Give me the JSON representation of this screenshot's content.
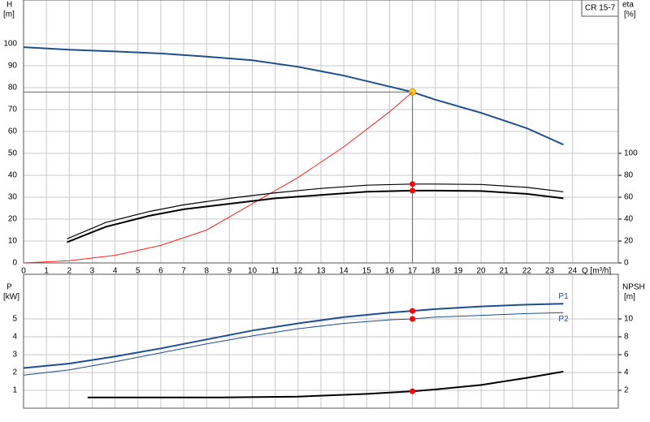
{
  "chart_data": [
    {
      "type": "line",
      "duty_x": 17,
      "legend": "CR 15-7",
      "y_label": "H",
      "y_unit": "[m]",
      "y2_label": "eta",
      "y2_unit": "[%]",
      "x_label": "Q [m³/h]",
      "xlim": [
        0,
        26
      ],
      "xticks": [
        0,
        1,
        2,
        3,
        4,
        5,
        6,
        7,
        8,
        9,
        10,
        11,
        12,
        13,
        14,
        15,
        16,
        17,
        18,
        19,
        20,
        21,
        22,
        23,
        24
      ],
      "ylim": [
        0,
        120
      ],
      "yticks": [
        0,
        10,
        20,
        30,
        40,
        50,
        60,
        70,
        80,
        90,
        100
      ],
      "y2lim": [
        0,
        240
      ],
      "y2ticks": [
        0,
        20,
        40,
        60,
        80,
        100
      ],
      "grid": true,
      "series": [
        {
          "color": "#1f4e8c",
          "width": 2,
          "point_color": "#ffd42a",
          "x": [
            0,
            2,
            4,
            6,
            8,
            10,
            12,
            14,
            16,
            17,
            18,
            20,
            22,
            23.6
          ],
          "values": [
            98.5,
            97.3,
            96.5,
            95.6,
            94.2,
            92.5,
            89.5,
            85.5,
            80.5,
            78,
            74.5,
            68.5,
            61.5,
            54
          ]
        },
        {
          "color": "#ff2020",
          "width": 1,
          "x": [
            0,
            2,
            4,
            6,
            8,
            10,
            12,
            14,
            16,
            17
          ],
          "values": [
            0,
            1,
            3.5,
            8,
            15,
            27,
            39,
            53,
            69,
            78
          ]
        },
        {
          "color": "#000000",
          "width": 1.2,
          "axis": "y2",
          "point_color": "#ff0000",
          "x": [
            1.9,
            3.6,
            5.5,
            7,
            9,
            11,
            13,
            15,
            17,
            18,
            20,
            22,
            23.6
          ],
          "values": [
            22,
            37,
            47,
            53,
            59,
            64,
            68,
            71,
            72,
            72,
            71.6,
            69,
            65
          ]
        },
        {
          "color": "#000000",
          "width": 2,
          "axis": "y2",
          "point_color": "#ff0000",
          "x": [
            1.9,
            3.6,
            5.5,
            7,
            9,
            11,
            13,
            15,
            17,
            18,
            20,
            22,
            23.6
          ],
          "values": [
            19,
            33,
            43,
            49,
            54,
            59,
            62,
            65,
            66,
            66,
            65.6,
            63,
            59
          ]
        }
      ]
    },
    {
      "type": "line",
      "y_label": "P",
      "y_unit": "[kW]",
      "y2_label": "NPSH",
      "y2_unit": "[m]",
      "ylim": [
        0,
        7.5
      ],
      "yticks": [
        1,
        2,
        3,
        4,
        5
      ],
      "y2lim": [
        0,
        15
      ],
      "y2ticks": [
        2,
        4,
        6,
        8,
        10
      ],
      "grid": true,
      "series": [
        {
          "name": "P1",
          "color": "#1f4e8c",
          "width": 2,
          "point_color": "#ff0000",
          "x": [
            0,
            2,
            4,
            6,
            8,
            10,
            12,
            14,
            16,
            17,
            18,
            20,
            22,
            23.6
          ],
          "values": [
            2.25,
            2.5,
            2.9,
            3.35,
            3.85,
            4.35,
            4.75,
            5.1,
            5.35,
            5.45,
            5.55,
            5.7,
            5.8,
            5.85
          ]
        },
        {
          "name": "P2",
          "color": "#1f4e8c",
          "width": 1,
          "point_color": "#ff0000",
          "x": [
            0,
            2,
            4,
            6,
            8,
            10,
            12,
            14,
            16,
            17,
            18,
            20,
            22,
            23.6
          ],
          "values": [
            1.85,
            2.15,
            2.6,
            3.1,
            3.6,
            4.05,
            4.45,
            4.75,
            4.95,
            5,
            5.1,
            5.2,
            5.3,
            5.35
          ]
        },
        {
          "color": "#000000",
          "width": 2,
          "axis": "y2",
          "point_color": "#ff0000",
          "x": [
            2.8,
            8.6,
            12,
            15,
            17,
            18,
            20,
            22,
            23.6
          ],
          "values": [
            1.2,
            1.2,
            1.3,
            1.6,
            1.9,
            2.1,
            2.6,
            3.4,
            4.1
          ]
        }
      ]
    }
  ]
}
